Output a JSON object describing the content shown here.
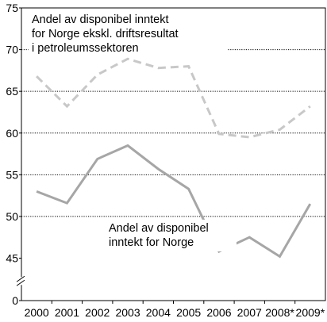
{
  "chart_data": {
    "type": "line",
    "title": "",
    "xlabel": "",
    "ylabel": "",
    "categories": [
      "2000",
      "2001",
      "2002",
      "2003",
      "2004",
      "2005",
      "2006",
      "2007",
      "2008*",
      "2009*"
    ],
    "y_ticks": [
      0,
      45,
      50,
      55,
      60,
      65,
      70,
      75
    ],
    "y_axis_break": [
      0,
      45
    ],
    "ylim": [
      0,
      75
    ],
    "grid": true,
    "series": [
      {
        "id": "ekskl",
        "values": [
          66.8,
          63.2,
          67.0,
          68.9,
          67.8,
          68.0,
          59.9,
          59.5,
          60.4,
          63.2
        ],
        "color": "#c8c8c8",
        "style": "dashed"
      },
      {
        "id": "total",
        "values": [
          53.0,
          51.6,
          56.9,
          58.5,
          55.7,
          53.3,
          45.8,
          47.5,
          45.2,
          51.5
        ],
        "color": "#a6a6a6",
        "style": "solid"
      }
    ],
    "annotations": [
      {
        "series": "ekskl",
        "lines": [
          "Andel av disponibel inntekt",
          "for Norge ekskl. driftsresultat",
          "i petroleumssektoren"
        ]
      },
      {
        "series": "total",
        "lines": [
          "Andel av disponibel",
          "inntekt for Norge"
        ]
      }
    ]
  }
}
